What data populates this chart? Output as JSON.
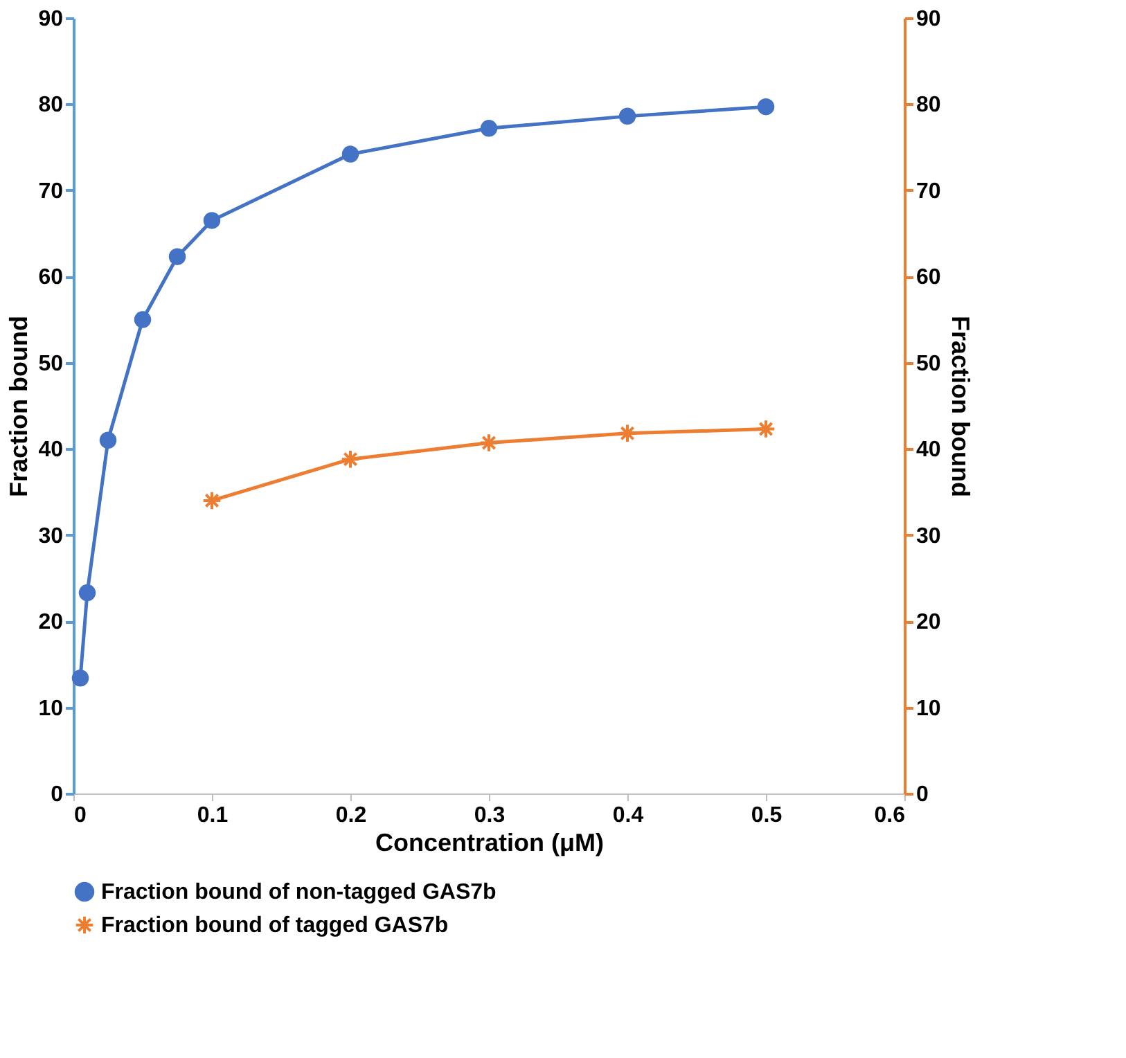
{
  "chart_data": {
    "type": "line",
    "xlabel": "Concentration (μM)",
    "ylabel": "Fraction bound",
    "y2label": "Fraction bound",
    "xlim": [
      0,
      0.6
    ],
    "xticks": [
      0,
      0.1,
      0.2,
      0.3,
      0.4,
      0.5,
      0.6
    ],
    "ylim": [
      0,
      90
    ],
    "yticks": [
      0,
      10,
      20,
      30,
      40,
      50,
      60,
      70,
      80,
      90
    ],
    "y2lim": [
      0,
      90
    ],
    "y2ticks": [
      0,
      10,
      20,
      30,
      40,
      50,
      60,
      70,
      80,
      90
    ],
    "grid": false,
    "legend": "bottom",
    "line_style": "solid",
    "series": [
      {
        "name": "Fraction bound of non-tagged GAS7b",
        "color": "#4472c4",
        "marker": "circle",
        "axis": "y",
        "x": [
          0.005,
          0.01,
          0.025,
          0.05,
          0.075,
          0.1,
          0.2,
          0.3,
          0.4,
          0.5
        ],
        "values": [
          13.4,
          23.3,
          41,
          55,
          62.3,
          66.5,
          74.2,
          77.2,
          78.6,
          79.7
        ]
      },
      {
        "name": "Fraction bound of  tagged GAS7b",
        "color": "#ed7d31",
        "marker": "cross",
        "axis": "y2",
        "x": [
          0.1,
          0.2,
          0.3,
          0.4,
          0.5
        ],
        "values": [
          34,
          38.8,
          40.7,
          41.8,
          42.3
        ]
      }
    ]
  }
}
